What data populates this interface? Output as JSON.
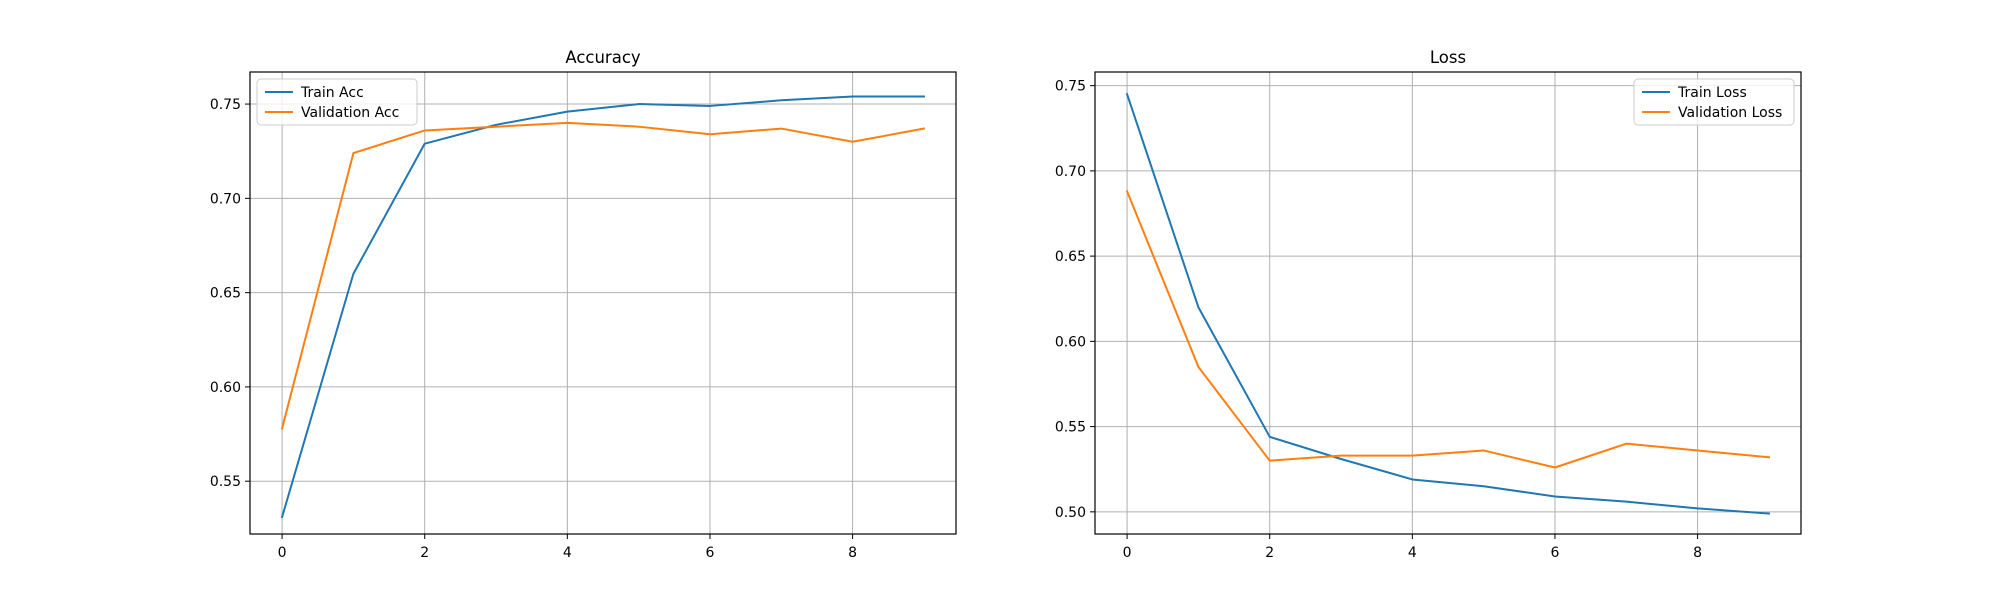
{
  "chart_data": [
    {
      "type": "line",
      "title": "Accuracy",
      "xlabel": "",
      "ylabel": "",
      "x": [
        0,
        1,
        2,
        3,
        4,
        5,
        6,
        7,
        8,
        9
      ],
      "xlim": [
        -0.45,
        9.45
      ],
      "ylim": [
        0.522,
        0.767
      ],
      "xticks": [
        0,
        2,
        4,
        6,
        8
      ],
      "yticks": [
        0.55,
        0.6,
        0.65,
        0.7,
        0.75
      ],
      "xtick_labels": [
        "0",
        "2",
        "4",
        "6",
        "8"
      ],
      "ytick_labels": [
        "0.55",
        "0.60",
        "0.65",
        "0.70",
        "0.75"
      ],
      "grid": true,
      "legend_position": "top-left",
      "series": [
        {
          "name": "Train Acc",
          "color": "#1f77b4",
          "values": [
            0.531,
            0.66,
            0.729,
            0.739,
            0.746,
            0.75,
            0.749,
            0.752,
            0.754,
            0.754
          ]
        },
        {
          "name": "Validation Acc",
          "color": "#ff7f0e",
          "values": [
            0.578,
            0.724,
            0.736,
            0.738,
            0.74,
            0.738,
            0.734,
            0.737,
            0.73,
            0.737
          ]
        }
      ]
    },
    {
      "type": "line",
      "title": "Loss",
      "xlabel": "",
      "ylabel": "",
      "x": [
        0,
        1,
        2,
        3,
        4,
        5,
        6,
        7,
        8,
        9
      ],
      "xlim": [
        -0.45,
        9.45
      ],
      "ylim": [
        0.487,
        0.758
      ],
      "xticks": [
        0,
        2,
        4,
        6,
        8
      ],
      "yticks": [
        0.5,
        0.55,
        0.6,
        0.65,
        0.7,
        0.75
      ],
      "xtick_labels": [
        "0",
        "2",
        "4",
        "6",
        "8"
      ],
      "ytick_labels": [
        "0.50",
        "0.55",
        "0.60",
        "0.65",
        "0.70",
        "0.75"
      ],
      "grid": true,
      "legend_position": "top-right",
      "series": [
        {
          "name": "Train Loss",
          "color": "#1f77b4",
          "values": [
            0.745,
            0.62,
            0.544,
            0.531,
            0.519,
            0.515,
            0.509,
            0.506,
            0.502,
            0.499
          ]
        },
        {
          "name": "Validation Loss",
          "color": "#ff7f0e",
          "values": [
            0.688,
            0.585,
            0.53,
            0.533,
            0.533,
            0.536,
            0.526,
            0.54,
            0.536,
            0.532
          ]
        }
      ]
    }
  ]
}
